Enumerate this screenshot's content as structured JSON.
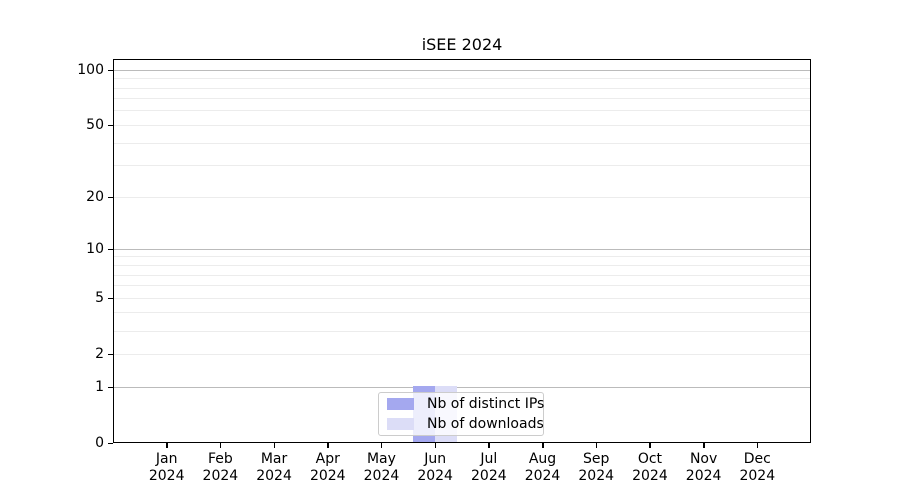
{
  "chart_data": {
    "type": "bar",
    "title": "iSEE 2024",
    "xlabel": "",
    "ylabel": "",
    "categories": [
      {
        "month": "Jan",
        "year": "2024"
      },
      {
        "month": "Feb",
        "year": "2024"
      },
      {
        "month": "Mar",
        "year": "2024"
      },
      {
        "month": "Apr",
        "year": "2024"
      },
      {
        "month": "May",
        "year": "2024"
      },
      {
        "month": "Jun",
        "year": "2024"
      },
      {
        "month": "Jul",
        "year": "2024"
      },
      {
        "month": "Aug",
        "year": "2024"
      },
      {
        "month": "Sep",
        "year": "2024"
      },
      {
        "month": "Oct",
        "year": "2024"
      },
      {
        "month": "Nov",
        "year": "2024"
      },
      {
        "month": "Dec",
        "year": "2024"
      }
    ],
    "series": [
      {
        "name": "Nb of distinct IPs",
        "color": "#a4a8ef",
        "values": [
          0,
          0,
          0,
          0,
          0,
          1,
          0,
          0,
          0,
          0,
          0,
          0
        ]
      },
      {
        "name": "Nb of downloads",
        "color": "#dcddf7",
        "values": [
          0,
          0,
          0,
          0,
          0,
          1,
          0,
          0,
          0,
          0,
          0,
          0
        ]
      }
    ],
    "yscale": "log1p",
    "ylim": [
      0,
      115
    ],
    "y_tick_labels": [
      0,
      1,
      2,
      5,
      10,
      20,
      50,
      100
    ],
    "y_major_gridlines": [
      1,
      10,
      100
    ],
    "y_minor_gridlines": [
      2,
      3,
      4,
      5,
      6,
      7,
      8,
      9,
      20,
      30,
      40,
      50,
      60,
      70,
      80,
      90
    ],
    "grid": true,
    "legend_position": "lower center",
    "colors": {
      "major_grid": "#bbbbbb",
      "minor_grid": "#ececec",
      "spine": "#000000",
      "tick": "#000000",
      "legend_border": "#cccccc",
      "background": "#ffffff"
    }
  }
}
